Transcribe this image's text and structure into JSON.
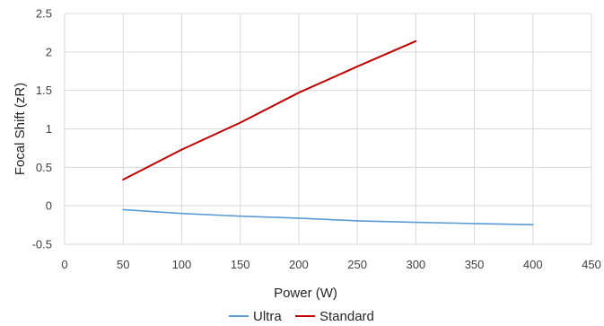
{
  "chart_data": {
    "type": "line",
    "title": "",
    "xlabel": "Power (W)",
    "ylabel": "Focal Shift (zR)",
    "xlim": [
      0,
      450
    ],
    "ylim": [
      -0.5,
      2.5
    ],
    "x_ticks": [
      "0",
      "50",
      "100",
      "150",
      "200",
      "250",
      "300",
      "350",
      "400",
      "450"
    ],
    "y_ticks": [
      "-0.5",
      "0",
      "0.5",
      "1",
      "1.5",
      "2",
      "2.5"
    ],
    "grid": "on",
    "legend": "bottom",
    "series": [
      {
        "name": "Ultra",
        "color": "#5B9BD5",
        "points": [
          [
            50,
            -0.05
          ],
          [
            100,
            -0.1
          ],
          [
            150,
            -0.135
          ],
          [
            200,
            -0.16
          ],
          [
            250,
            -0.195
          ],
          [
            300,
            -0.215
          ],
          [
            350,
            -0.23
          ],
          [
            400,
            -0.245
          ]
        ]
      },
      {
        "name": "Standard",
        "color": "#C00000",
        "points": [
          [
            50,
            0.34
          ],
          [
            100,
            0.73
          ],
          [
            150,
            1.08
          ],
          [
            200,
            1.47
          ],
          [
            250,
            1.81
          ],
          [
            300,
            2.14
          ]
        ]
      }
    ]
  }
}
